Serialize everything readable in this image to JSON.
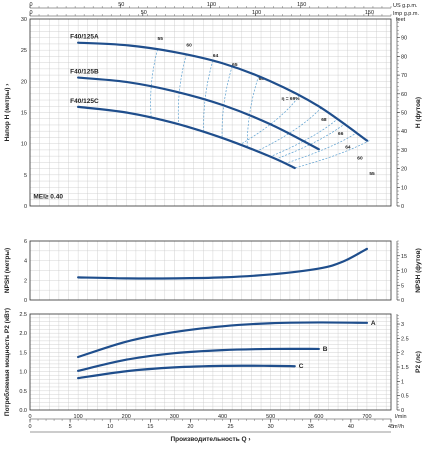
{
  "chart_data": {
    "type": "line",
    "x_axis": {
      "label": "Производительность Q",
      "unit": "l/min",
      "range": [
        0,
        750
      ],
      "ticks": [
        0,
        100,
        200,
        300,
        400,
        500,
        600,
        700
      ],
      "secondary_units": [
        {
          "unit": "US g.p.m.",
          "range": [
            0,
            200
          ],
          "ticks": [
            0,
            50,
            100,
            150
          ]
        },
        {
          "unit": "Imp g.p.m.",
          "range": [
            0,
            160
          ],
          "ticks": [
            0,
            50,
            100,
            150
          ]
        },
        {
          "unit": "m³/h",
          "range": [
            0,
            45
          ],
          "ticks": [
            0,
            5,
            10,
            15,
            20,
            25,
            30,
            35,
            40,
            45
          ]
        }
      ]
    },
    "panels": [
      {
        "id": "head",
        "ylabel": "Напор H (метры)",
        "ylabel_right": "H (футов)",
        "right_unit": "feet",
        "ylim": [
          0,
          30
        ],
        "yticks": [
          0,
          5,
          10,
          15,
          20,
          25,
          30
        ],
        "right_ylim": [
          0,
          100
        ],
        "right_yticks": [
          0,
          10,
          20,
          30,
          40,
          50,
          60,
          70,
          80,
          90
        ],
        "annotation": "MEI≥ 0.40",
        "series": [
          {
            "name": "F40/125A",
            "x": [
              100,
              200,
              300,
              400,
              500,
              600,
              700
            ],
            "y": [
              26.2,
              25.8,
              24.7,
              22.9,
              20.0,
              16.0,
              10.5
            ]
          },
          {
            "name": "F40/125B",
            "x": [
              100,
              200,
              300,
              400,
              500,
              600
            ],
            "y": [
              20.6,
              19.9,
              18.4,
              16.2,
              13.1,
              9.1
            ]
          },
          {
            "name": "F40/125C",
            "x": [
              100,
              200,
              300,
              400,
              500,
              550
            ],
            "y": [
              15.9,
              15.0,
              13.3,
              10.9,
              7.9,
              6.1
            ]
          }
        ],
        "efficiency": {
          "label_prefix": "η =",
          "labels": [
            "55",
            "60",
            "64",
            "65",
            "68",
            "69%",
            "68",
            "66",
            "64",
            "60",
            "55"
          ],
          "points": [
            [
              265,
              26.6
            ],
            [
              325,
              25.6
            ],
            [
              380,
              23.9
            ],
            [
              420,
              22.5
            ],
            [
              475,
              20.2
            ],
            [
              560,
              17.0
            ],
            [
              605,
              13.6
            ],
            [
              640,
              11.4
            ],
            [
              655,
              9.2
            ],
            [
              680,
              7.5
            ],
            [
              705,
              5.0
            ]
          ]
        }
      },
      {
        "id": "npsh",
        "ylabel": "NPSH (метры)",
        "ylabel_right": "NPSH (футов)",
        "ylim": [
          0,
          6
        ],
        "yticks": [
          0,
          2,
          4,
          6
        ],
        "right_ylim": [
          0,
          20
        ],
        "right_yticks": [
          0,
          5,
          10,
          15
        ],
        "series": [
          {
            "name": "",
            "x": [
              100,
              200,
              300,
              400,
              500,
              600,
              650,
              700
            ],
            "y": [
              2.3,
              2.2,
              2.2,
              2.3,
              2.6,
              3.2,
              3.9,
              5.2
            ]
          }
        ]
      },
      {
        "id": "power",
        "ylabel": "Потребляемая мощность P2 (кВт)",
        "ylabel_right": "P2 (лс)",
        "ylim": [
          0,
          2.5
        ],
        "yticks": [
          0,
          0.5,
          1.0,
          1.5,
          2.0,
          2.5
        ],
        "right_ylim": [
          0,
          3.35
        ],
        "right_yticks": [
          0,
          0.5,
          1,
          1.5,
          2,
          2.5,
          3
        ],
        "series": [
          {
            "name": "A",
            "x": [
              100,
              200,
              300,
              400,
              500,
              600,
              700
            ],
            "y": [
              1.38,
              1.78,
              2.03,
              2.18,
              2.26,
              2.28,
              2.27
            ]
          },
          {
            "name": "B",
            "x": [
              100,
              200,
              300,
              400,
              500,
              600
            ],
            "y": [
              1.02,
              1.31,
              1.48,
              1.56,
              1.59,
              1.59
            ]
          },
          {
            "name": "C",
            "x": [
              100,
              200,
              300,
              400,
              500,
              550
            ],
            "y": [
              0.83,
              1.01,
              1.11,
              1.15,
              1.15,
              1.14
            ]
          }
        ]
      }
    ]
  }
}
